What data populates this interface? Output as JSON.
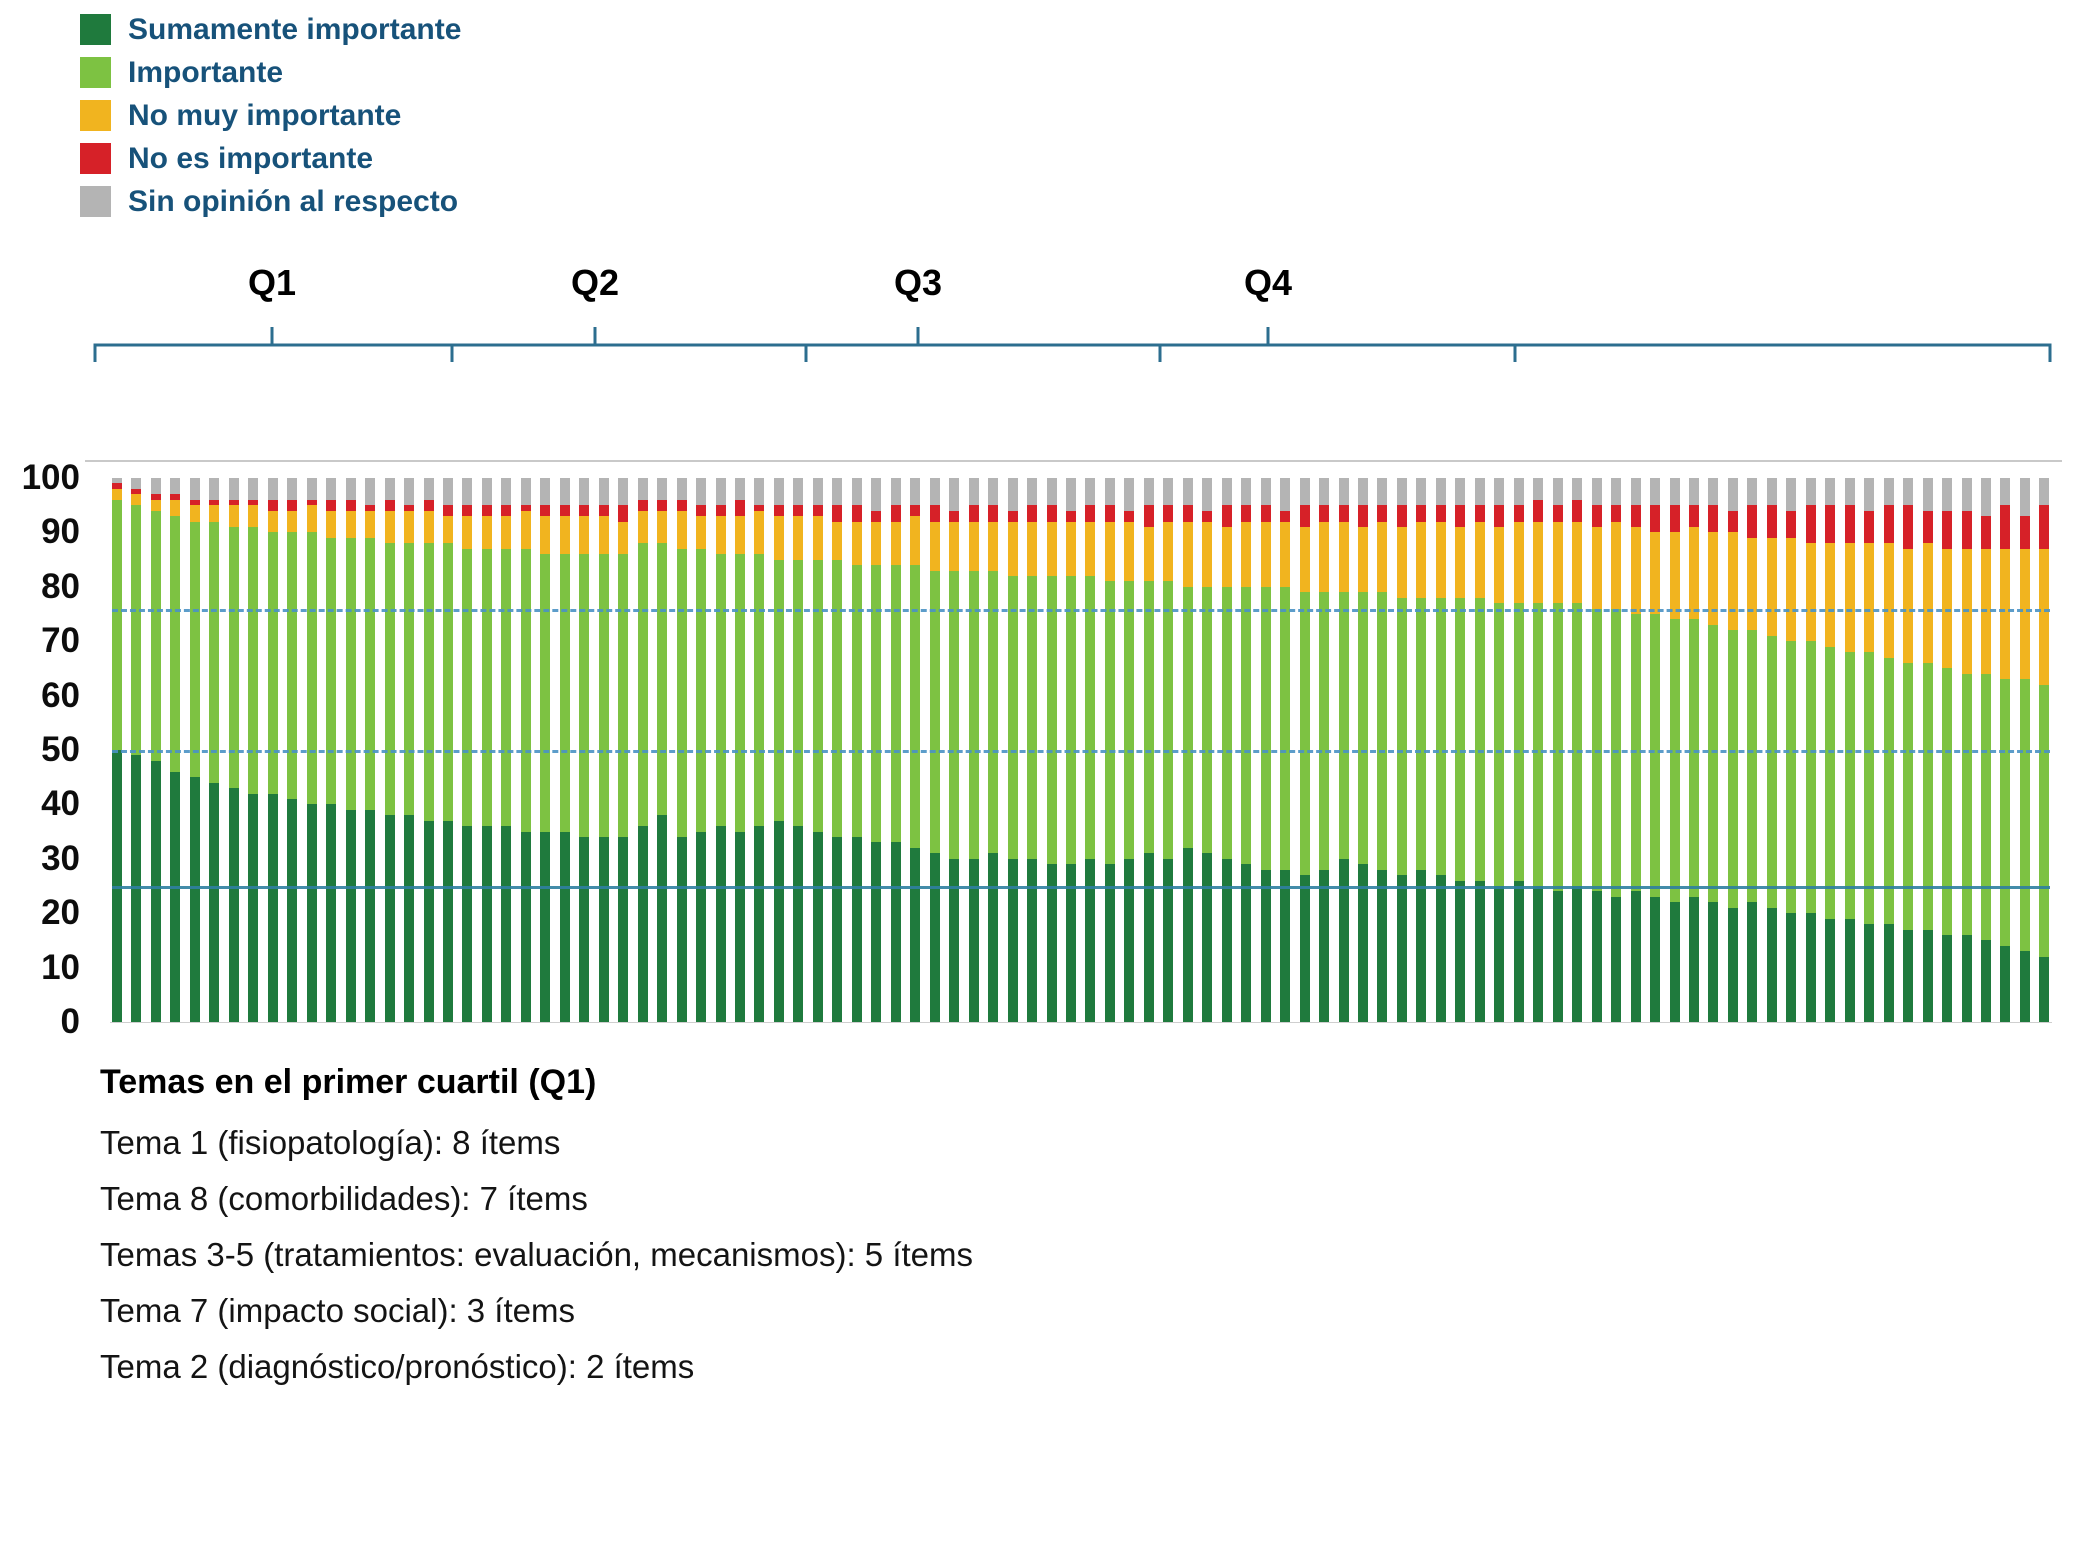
{
  "legend": {
    "items": [
      {
        "label": "Sumamente importante",
        "color": "#1f7a3d"
      },
      {
        "label": "Importante",
        "color": "#7dc242"
      },
      {
        "label": "No muy importante",
        "color": "#f1b41f"
      },
      {
        "label": "No es importante",
        "color": "#d62128"
      },
      {
        "label": "Sin opinión al respecto",
        "color": "#b4b4b4"
      }
    ]
  },
  "footer": {
    "title": "Temas en el primer cuartil (Q1)",
    "lines": [
      "Tema 1 (fisiopatología): 8 ítems",
      "Tema 8 (comorbilidades): 7 ítems",
      "Temas 3-5 (tratamientos: evaluación, mecanismos): 5 ítems",
      "Tema 7 (impacto social): 3 ítems",
      "Tema 2 (diagnóstico/pronóstico): 2 ítems"
    ]
  },
  "chart_data": {
    "type": "bar",
    "stacked": true,
    "orientation": "vertical",
    "title": "",
    "xlabel": "",
    "ylabel": "",
    "ylim": [
      0,
      100
    ],
    "yticks": [
      0,
      10,
      20,
      30,
      40,
      50,
      60,
      70,
      80,
      90,
      100
    ],
    "grid": false,
    "legend_position": "top-left",
    "quartiles": [
      "Q1",
      "Q2",
      "Q3",
      "Q4"
    ],
    "series": [
      {
        "name": "Sumamente importante",
        "color": "#1f7a3d"
      },
      {
        "name": "Importante",
        "color": "#7dc242"
      },
      {
        "name": "No muy importante",
        "color": "#f1b41f"
      },
      {
        "name": "No es importante",
        "color": "#d62128"
      },
      {
        "name": "Sin opinión al respecto",
        "color": "#b4b4b4"
      }
    ],
    "reference_lines": [
      {
        "value": 76,
        "style": "dashed",
        "color": "#4b93c5"
      },
      {
        "value": 50,
        "style": "dashed",
        "color": "#4b93c5"
      },
      {
        "value": 25,
        "style": "solid",
        "color": "#2f7fa0"
      }
    ],
    "bars": [
      [
        50,
        46,
        2,
        1,
        1
      ],
      [
        49,
        46,
        2,
        1,
        2
      ],
      [
        48,
        46,
        2,
        1,
        3
      ],
      [
        46,
        47,
        3,
        1,
        3
      ],
      [
        45,
        47,
        3,
        1,
        4
      ],
      [
        44,
        48,
        3,
        1,
        4
      ],
      [
        43,
        48,
        4,
        1,
        4
      ],
      [
        42,
        49,
        4,
        1,
        4
      ],
      [
        42,
        48,
        4,
        2,
        4
      ],
      [
        41,
        49,
        4,
        2,
        4
      ],
      [
        40,
        50,
        5,
        1,
        4
      ],
      [
        40,
        49,
        5,
        2,
        4
      ],
      [
        39,
        50,
        5,
        2,
        4
      ],
      [
        39,
        50,
        5,
        1,
        5
      ],
      [
        38,
        50,
        6,
        2,
        4
      ],
      [
        38,
        50,
        6,
        1,
        5
      ],
      [
        37,
        51,
        6,
        2,
        4
      ],
      [
        37,
        51,
        5,
        2,
        5
      ],
      [
        36,
        51,
        6,
        2,
        5
      ],
      [
        36,
        51,
        6,
        2,
        5
      ],
      [
        36,
        51,
        6,
        2,
        5
      ],
      [
        35,
        52,
        7,
        1,
        5
      ],
      [
        35,
        51,
        7,
        2,
        5
      ],
      [
        35,
        51,
        7,
        2,
        5
      ],
      [
        34,
        52,
        7,
        2,
        5
      ],
      [
        34,
        52,
        7,
        2,
        5
      ],
      [
        34,
        52,
        6,
        3,
        5
      ],
      [
        36,
        52,
        6,
        2,
        4
      ],
      [
        38,
        50,
        6,
        2,
        4
      ],
      [
        34,
        53,
        7,
        2,
        4
      ],
      [
        35,
        52,
        6,
        2,
        5
      ],
      [
        36,
        50,
        7,
        2,
        5
      ],
      [
        35,
        51,
        7,
        3,
        4
      ],
      [
        36,
        50,
        8,
        1,
        5
      ],
      [
        37,
        48,
        8,
        2,
        5
      ],
      [
        36,
        49,
        8,
        2,
        5
      ],
      [
        35,
        50,
        8,
        2,
        5
      ],
      [
        34,
        51,
        7,
        3,
        5
      ],
      [
        34,
        50,
        8,
        3,
        5
      ],
      [
        33,
        51,
        8,
        2,
        6
      ],
      [
        33,
        51,
        8,
        3,
        5
      ],
      [
        32,
        52,
        9,
        2,
        5
      ],
      [
        31,
        52,
        9,
        3,
        5
      ],
      [
        30,
        53,
        9,
        2,
        6
      ],
      [
        30,
        53,
        9,
        3,
        5
      ],
      [
        31,
        52,
        9,
        3,
        5
      ],
      [
        30,
        52,
        10,
        2,
        6
      ],
      [
        30,
        52,
        10,
        3,
        5
      ],
      [
        29,
        53,
        10,
        3,
        5
      ],
      [
        29,
        53,
        10,
        2,
        6
      ],
      [
        30,
        52,
        10,
        3,
        5
      ],
      [
        29,
        52,
        11,
        3,
        5
      ],
      [
        30,
        51,
        11,
        2,
        6
      ],
      [
        31,
        50,
        10,
        4,
        5
      ],
      [
        30,
        51,
        11,
        3,
        5
      ],
      [
        32,
        48,
        12,
        3,
        5
      ],
      [
        31,
        49,
        12,
        2,
        6
      ],
      [
        30,
        50,
        11,
        4,
        5
      ],
      [
        29,
        51,
        12,
        3,
        5
      ],
      [
        28,
        52,
        12,
        3,
        5
      ],
      [
        28,
        52,
        12,
        2,
        6
      ],
      [
        27,
        52,
        12,
        4,
        5
      ],
      [
        28,
        51,
        13,
        3,
        5
      ],
      [
        30,
        49,
        13,
        3,
        5
      ],
      [
        29,
        50,
        12,
        4,
        5
      ],
      [
        28,
        51,
        13,
        3,
        5
      ],
      [
        27,
        51,
        13,
        4,
        5
      ],
      [
        28,
        50,
        14,
        3,
        5
      ],
      [
        27,
        51,
        14,
        3,
        5
      ],
      [
        26,
        52,
        13,
        4,
        5
      ],
      [
        26,
        52,
        14,
        3,
        5
      ],
      [
        25,
        52,
        14,
        4,
        5
      ],
      [
        26,
        51,
        15,
        3,
        5
      ],
      [
        25,
        52,
        15,
        4,
        4
      ],
      [
        24,
        53,
        15,
        3,
        5
      ],
      [
        25,
        52,
        15,
        4,
        4
      ],
      [
        24,
        52,
        15,
        4,
        5
      ],
      [
        23,
        53,
        16,
        3,
        5
      ],
      [
        24,
        51,
        16,
        4,
        5
      ],
      [
        23,
        52,
        15,
        5,
        5
      ],
      [
        22,
        52,
        16,
        5,
        5
      ],
      [
        23,
        51,
        17,
        4,
        5
      ],
      [
        22,
        51,
        17,
        5,
        5
      ],
      [
        21,
        51,
        18,
        4,
        6
      ],
      [
        22,
        50,
        17,
        6,
        5
      ],
      [
        21,
        50,
        18,
        6,
        5
      ],
      [
        20,
        50,
        19,
        5,
        6
      ],
      [
        20,
        50,
        18,
        7,
        5
      ],
      [
        19,
        50,
        19,
        7,
        5
      ],
      [
        19,
        49,
        20,
        7,
        5
      ],
      [
        18,
        50,
        20,
        6,
        6
      ],
      [
        18,
        49,
        21,
        7,
        5
      ],
      [
        17,
        49,
        21,
        8,
        5
      ],
      [
        17,
        49,
        22,
        6,
        6
      ],
      [
        16,
        49,
        22,
        7,
        6
      ],
      [
        16,
        48,
        23,
        7,
        6
      ],
      [
        15,
        49,
        23,
        6,
        7
      ],
      [
        14,
        49,
        24,
        8,
        5
      ],
      [
        13,
        50,
        24,
        6,
        7
      ],
      [
        12,
        50,
        25,
        8,
        5
      ]
    ]
  }
}
